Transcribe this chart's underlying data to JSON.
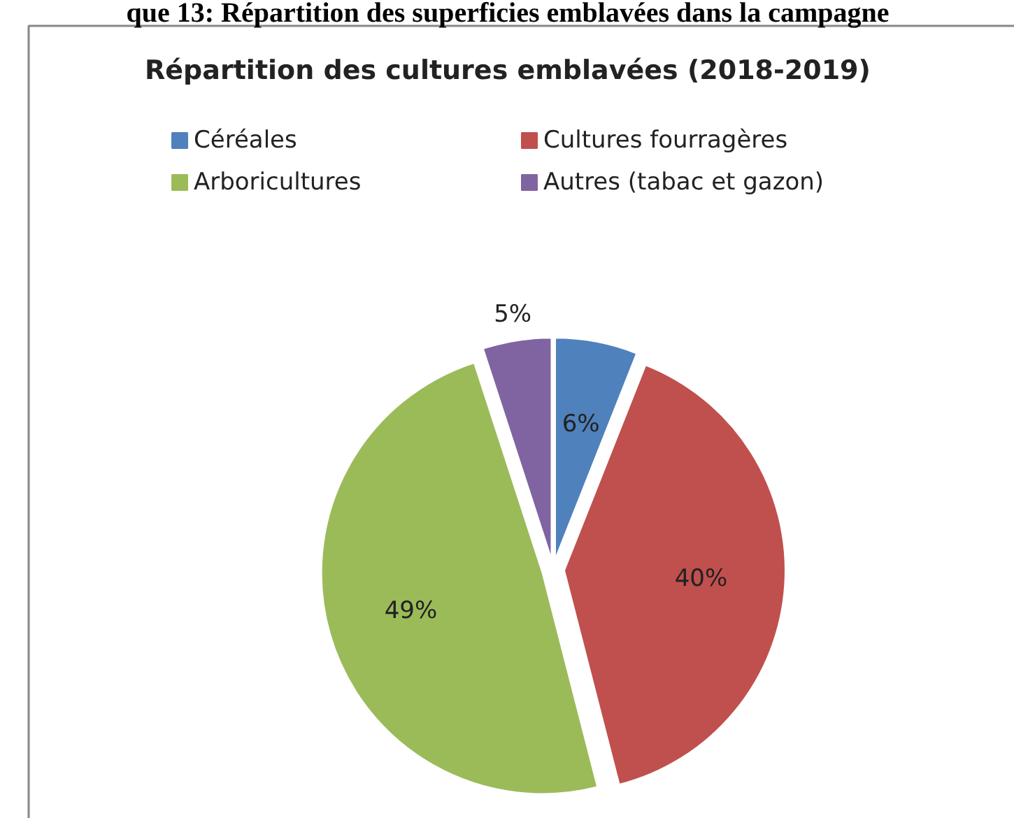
{
  "chart_data": {
    "type": "pie",
    "title": "Répartition des cultures emblavées (2018-2019)",
    "annotations": [
      "que 13: Répartition des superficies emblavées dans la campagne"
    ],
    "categories": [
      "Céréales",
      "Cultures fourragères",
      "Arboricultures",
      "Autres (tabac et gazon)"
    ],
    "values": [
      6,
      40,
      49,
      5
    ],
    "colors": [
      "#4f81bd",
      "#c0504d",
      "#9bbb59",
      "#8064a2"
    ],
    "value_labels": [
      "6%",
      "40%",
      "49%",
      "5%"
    ],
    "legend": "top"
  }
}
